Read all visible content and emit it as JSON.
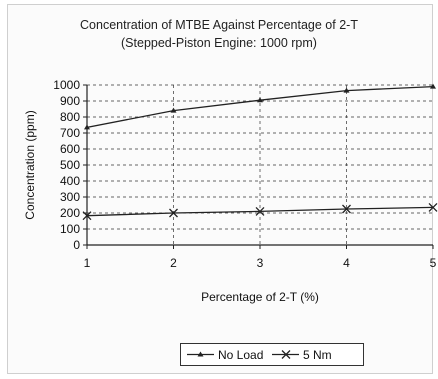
{
  "chart_data": {
    "type": "line",
    "title": "Concentration of MTBE Against Percentage of 2-T",
    "subtitle": "(Stepped-Piston Engine: 1000 rpm)",
    "xlabel": "Percentage of 2-T (%)",
    "ylabel": "Concentration (ppm)",
    "x": [
      1,
      2,
      3,
      4,
      5
    ],
    "xlim": [
      1,
      5
    ],
    "ylim": [
      0,
      1000
    ],
    "yticks": [
      0,
      100,
      200,
      300,
      400,
      500,
      600,
      700,
      800,
      900,
      1000
    ],
    "grid": true,
    "legend_position": "bottom",
    "series": [
      {
        "name": "No Load",
        "marker": "triangle",
        "values": [
          735,
          840,
          905,
          965,
          990
        ]
      },
      {
        "name": "5 Nm",
        "marker": "x",
        "values": [
          183,
          200,
          210,
          225,
          235
        ]
      }
    ]
  }
}
